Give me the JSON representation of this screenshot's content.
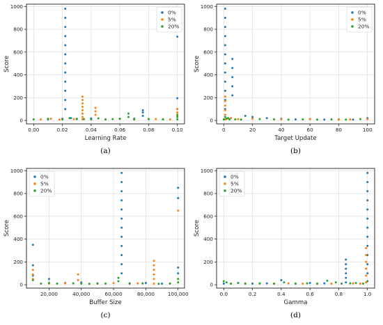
{
  "colors": {
    "s0": "#1f77b4",
    "s5": "#ff7f0e",
    "s20": "#2ca02c"
  },
  "chart_data": [
    {
      "type": "scatter",
      "caption": "(a)",
      "xlabel": "Learning Rate",
      "ylabel": "Score",
      "xlim": [
        -0.005,
        0.105
      ],
      "ylim": [
        -30,
        1020
      ],
      "xticks": [
        0.0,
        0.02,
        0.04,
        0.06,
        0.08,
        0.1
      ],
      "xtick_labels": [
        "0.00",
        "0.02",
        "0.04",
        "0.06",
        "0.08",
        "0.10"
      ],
      "yticks": [
        0,
        200,
        400,
        600,
        800,
        1000
      ],
      "ytick_labels": [
        "0",
        "200",
        "400",
        "600",
        "800",
        "1000"
      ],
      "grid": true,
      "legend": "top-right",
      "series": [
        {
          "name": "0%",
          "x": [
            0.022,
            0.022,
            0.022,
            0.022,
            0.022,
            0.022,
            0.022,
            0.022,
            0.022,
            0.022,
            0.022,
            0.022,
            0.1,
            0.1,
            0.1,
            0.076,
            0.076,
            0.076,
            0.01,
            0.02,
            0.026,
            0.03,
            0.04,
            0.05,
            0.06,
            0.07,
            0.08,
            0.09
          ],
          "y": [
            980,
            900,
            820,
            740,
            660,
            580,
            500,
            420,
            340,
            260,
            180,
            100,
            735,
            195,
            100,
            90,
            70,
            40,
            10,
            15,
            20,
            12,
            18,
            10,
            14,
            16,
            12,
            10
          ]
        },
        {
          "name": "5%",
          "x": [
            0.034,
            0.034,
            0.034,
            0.034,
            0.034,
            0.034,
            0.034,
            0.034,
            0.043,
            0.043,
            0.043,
            0.1,
            0.1,
            0.1,
            0.005,
            0.012,
            0.018,
            0.028,
            0.05,
            0.06,
            0.07,
            0.085,
            0.095
          ],
          "y": [
            210,
            180,
            150,
            120,
            90,
            60,
            30,
            10,
            110,
            80,
            50,
            100,
            70,
            40,
            10,
            15,
            8,
            12,
            10,
            14,
            8,
            12,
            10
          ]
        },
        {
          "name": "20%",
          "x": [
            0.0,
            0.01,
            0.02,
            0.025,
            0.03,
            0.035,
            0.04,
            0.045,
            0.05,
            0.055,
            0.06,
            0.066,
            0.066,
            0.07,
            0.08,
            0.09,
            0.1,
            0.1,
            0.1
          ],
          "y": [
            10,
            15,
            10,
            20,
            15,
            12,
            10,
            18,
            10,
            12,
            15,
            60,
            30,
            10,
            12,
            10,
            50,
            30,
            10
          ]
        }
      ]
    },
    {
      "type": "scatter",
      "caption": "(b)",
      "xlabel": "Target Update",
      "ylabel": "Score",
      "xlim": [
        -5,
        105
      ],
      "ylim": [
        -30,
        1020
      ],
      "xticks": [
        0,
        20,
        40,
        60,
        80,
        100
      ],
      "xtick_labels": [
        "0",
        "20",
        "40",
        "60",
        "80",
        "100"
      ],
      "yticks": [
        0,
        200,
        400,
        600,
        800,
        1000
      ],
      "ytick_labels": [
        "0",
        "200",
        "400",
        "600",
        "800",
        "1000"
      ],
      "grid": true,
      "legend": "top-right",
      "series": [
        {
          "name": "0%",
          "x": [
            1,
            1,
            1,
            1,
            1,
            1,
            1,
            1,
            1,
            1,
            1,
            1,
            6,
            6,
            6,
            6,
            6,
            15,
            20,
            30,
            40,
            50,
            60,
            70,
            80,
            90,
            100
          ],
          "y": [
            980,
            900,
            820,
            740,
            660,
            580,
            500,
            420,
            340,
            260,
            180,
            100,
            540,
            460,
            380,
            300,
            220,
            40,
            30,
            20,
            15,
            10,
            12,
            8,
            10,
            8,
            20
          ]
        },
        {
          "name": "5%",
          "x": [
            1,
            1,
            1,
            1,
            1,
            1,
            5,
            10,
            20,
            40,
            60,
            80,
            88,
            100
          ],
          "y": [
            210,
            170,
            130,
            90,
            50,
            10,
            20,
            12,
            15,
            10,
            12,
            8,
            10,
            12
          ]
        },
        {
          "name": "20%",
          "x": [
            0,
            1,
            2,
            3,
            4,
            8,
            12,
            25,
            35,
            45,
            55,
            65,
            75,
            85,
            95
          ],
          "y": [
            10,
            30,
            15,
            20,
            10,
            10,
            8,
            12,
            10,
            8,
            10,
            8,
            10,
            8,
            12
          ]
        }
      ]
    },
    {
      "type": "scatter",
      "caption": "(c)",
      "xlabel": "Buffer Size",
      "ylabel": "Score",
      "xlim": [
        6000,
        104000
      ],
      "ylim": [
        -30,
        1020
      ],
      "xticks": [
        20000,
        40000,
        60000,
        80000,
        100000
      ],
      "xtick_labels": [
        "20,000",
        "40,000",
        "60,000",
        "80,000",
        "100,000"
      ],
      "yticks": [
        0,
        200,
        400,
        600,
        800,
        1000
      ],
      "ytick_labels": [
        "0",
        "200",
        "400",
        "600",
        "800",
        "1000"
      ],
      "grid": true,
      "legend": "top-left",
      "series": [
        {
          "name": "0%",
          "x": [
            65000,
            65000,
            65000,
            65000,
            65000,
            65000,
            65000,
            65000,
            65000,
            65000,
            65000,
            65000,
            10000,
            10000,
            10000,
            100000,
            100000,
            100000,
            100000,
            20000,
            30000,
            40000,
            50000,
            70000,
            80000,
            90000
          ],
          "y": [
            980,
            900,
            820,
            740,
            660,
            580,
            500,
            420,
            340,
            260,
            180,
            100,
            350,
            170,
            80,
            850,
            760,
            150,
            100,
            50,
            15,
            20,
            10,
            12,
            15,
            10
          ]
        },
        {
          "name": "5%",
          "x": [
            10000,
            10000,
            10000,
            38000,
            38000,
            85000,
            85000,
            85000,
            85000,
            85000,
            85000,
            100000,
            20000,
            30000,
            50000,
            60000,
            70000,
            75000,
            95000
          ],
          "y": [
            130,
            90,
            50,
            90,
            40,
            210,
            170,
            130,
            90,
            50,
            10,
            650,
            10,
            12,
            10,
            14,
            10,
            12,
            10
          ]
        },
        {
          "name": "20%",
          "x": [
            10000,
            15000,
            20000,
            25000,
            35000,
            40000,
            45000,
            50000,
            55000,
            63000,
            63000,
            70000,
            78000,
            88000,
            95000,
            100000,
            100000
          ],
          "y": [
            40,
            10,
            15,
            10,
            12,
            10,
            8,
            12,
            10,
            60,
            30,
            10,
            12,
            8,
            10,
            50,
            20
          ]
        }
      ]
    },
    {
      "type": "scatter",
      "caption": "(d)",
      "xlabel": "Gamma",
      "ylabel": "Score",
      "xlim": [
        -0.05,
        1.05
      ],
      "ylim": [
        -30,
        1020
      ],
      "xticks": [
        0.0,
        0.2,
        0.4,
        0.6,
        0.8,
        1.0
      ],
      "xtick_labels": [
        "0.0",
        "0.2",
        "0.4",
        "0.6",
        "0.8",
        "1.0"
      ],
      "yticks": [
        0,
        200,
        400,
        600,
        800,
        1000
      ],
      "ytick_labels": [
        "0",
        "200",
        "400",
        "600",
        "800",
        "1000"
      ],
      "grid": true,
      "legend": "top-left",
      "series": [
        {
          "name": "0%",
          "x": [
            1.0,
            1.0,
            1.0,
            1.0,
            1.0,
            1.0,
            1.0,
            1.0,
            1.0,
            1.0,
            1.0,
            1.0,
            0.85,
            0.85,
            0.85,
            0.85,
            0.85,
            0.85,
            0.0,
            0.1,
            0.2,
            0.3,
            0.4,
            0.5,
            0.6,
            0.7
          ],
          "y": [
            980,
            900,
            820,
            740,
            660,
            580,
            500,
            420,
            340,
            260,
            180,
            100,
            220,
            180,
            140,
            100,
            60,
            20,
            10,
            15,
            10,
            12,
            40,
            10,
            15,
            12
          ]
        },
        {
          "name": "5%",
          "x": [
            0.99,
            0.99,
            0.99,
            0.99,
            0.99,
            0.99,
            0.05,
            0.15,
            0.25,
            0.35,
            0.45,
            0.55,
            0.65,
            0.75,
            0.9,
            0.95
          ],
          "y": [
            320,
            260,
            200,
            140,
            80,
            20,
            10,
            12,
            10,
            8,
            12,
            10,
            8,
            10,
            12,
            10
          ]
        },
        {
          "name": "20%",
          "x": [
            0.0,
            0.02,
            0.05,
            0.1,
            0.15,
            0.25,
            0.35,
            0.42,
            0.5,
            0.58,
            0.65,
            0.72,
            0.78,
            0.82,
            0.88,
            0.92,
            0.97,
            1.0
          ],
          "y": [
            30,
            20,
            10,
            15,
            10,
            12,
            10,
            20,
            10,
            12,
            10,
            35,
            20,
            10,
            12,
            15,
            10,
            30
          ]
        }
      ]
    }
  ]
}
